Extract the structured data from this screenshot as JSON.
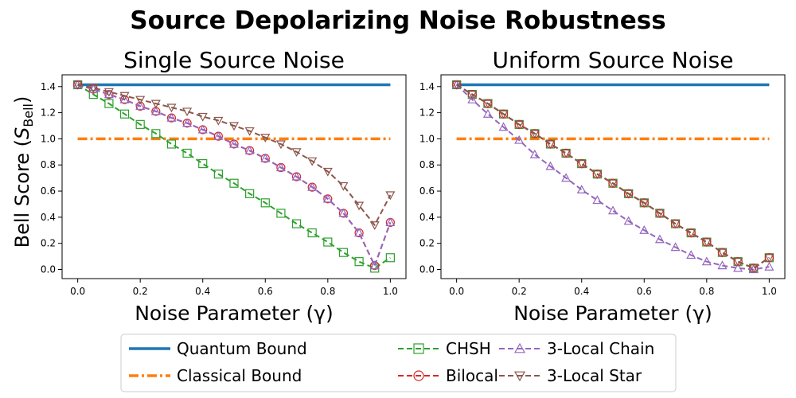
{
  "figure": {
    "title": "Source Depolarizing Noise Robustness"
  },
  "shared_ylabel": {
    "pre": "Bell Score (",
    "sym": "S",
    "sub": "Bell",
    "post": ")"
  },
  "legend": {
    "columns": 3,
    "entries": [
      {
        "label": "Quantum Bound",
        "color": "#1f77b4",
        "dash": "solid",
        "marker": "none"
      },
      {
        "label": "Classical Bound",
        "color": "#ff7f0e",
        "dash": "dashdot",
        "marker": "none"
      },
      {
        "label": "CHSH",
        "color": "#2ca02c",
        "dash": "dashed",
        "marker": "square"
      },
      {
        "label": "Bilocal",
        "color": "#d62728",
        "dash": "dashed",
        "marker": "circle"
      },
      {
        "label": "3-Local Chain",
        "color": "#9467bd",
        "dash": "dashed",
        "marker": "triangle-up"
      },
      {
        "label": "3-Local Star",
        "color": "#8c564b",
        "dash": "dashed",
        "marker": "triangle-down"
      }
    ]
  },
  "chart_data": [
    {
      "type": "line",
      "title": "Single Source Noise",
      "xlabel": "Noise Parameter (γ)",
      "ylabel": "Bell Score (S_Bell)",
      "xlim": [
        -0.05,
        1.05
      ],
      "ylim": [
        -0.07,
        1.49
      ],
      "xticks": [
        "0.0",
        "0.2",
        "0.4",
        "0.6",
        "0.8",
        "1.0"
      ],
      "yticks": [
        "0.0",
        "0.2",
        "0.4",
        "0.6",
        "0.8",
        "1.0",
        "1.2",
        "1.4"
      ],
      "grid": false,
      "x": [
        0,
        0.05,
        0.1,
        0.15,
        0.2,
        0.25,
        0.3,
        0.35,
        0.4,
        0.45,
        0.5,
        0.55,
        0.6,
        0.65,
        0.7,
        0.75,
        0.8,
        0.85,
        0.9,
        0.95,
        1.0
      ],
      "series": [
        {
          "name": "Quantum Bound",
          "values": [
            1.414,
            1.414,
            1.414,
            1.414,
            1.414,
            1.414,
            1.414,
            1.414,
            1.414,
            1.414,
            1.414,
            1.414,
            1.414,
            1.414,
            1.414,
            1.414,
            1.414,
            1.414,
            1.414,
            1.414,
            1.414
          ]
        },
        {
          "name": "Classical Bound",
          "values": [
            1,
            1,
            1,
            1,
            1,
            1,
            1,
            1,
            1,
            1,
            1,
            1,
            1,
            1,
            1,
            1,
            1,
            1,
            1,
            1,
            1
          ]
        },
        {
          "name": "CHSH",
          "values": [
            1.414,
            1.34,
            1.27,
            1.19,
            1.11,
            1.04,
            0.96,
            0.89,
            0.81,
            0.73,
            0.66,
            0.58,
            0.51,
            0.43,
            0.35,
            0.28,
            0.21,
            0.13,
            0.06,
            0.01,
            0.09
          ]
        },
        {
          "name": "Bilocal",
          "values": [
            1.414,
            1.38,
            1.34,
            1.3,
            1.25,
            1.21,
            1.16,
            1.12,
            1.07,
            1.02,
            0.96,
            0.91,
            0.85,
            0.78,
            0.71,
            0.63,
            0.54,
            0.43,
            0.28,
            0.03,
            0.36
          ]
        },
        {
          "name": "3-Local Chain",
          "values": [
            1.414,
            1.38,
            1.34,
            1.3,
            1.25,
            1.21,
            1.16,
            1.12,
            1.07,
            1.02,
            0.96,
            0.91,
            0.85,
            0.78,
            0.71,
            0.63,
            0.54,
            0.43,
            0.28,
            0.03,
            0.36
          ]
        },
        {
          "name": "3-Local Star",
          "values": [
            1.414,
            1.39,
            1.36,
            1.33,
            1.3,
            1.27,
            1.24,
            1.21,
            1.17,
            1.14,
            1.1,
            1.06,
            1.01,
            0.96,
            0.9,
            0.83,
            0.75,
            0.64,
            0.49,
            0.34,
            0.57
          ]
        }
      ]
    },
    {
      "type": "line",
      "title": "Uniform Source Noise",
      "xlabel": "Noise Parameter (γ)",
      "ylabel": "",
      "xlim": [
        -0.05,
        1.05
      ],
      "ylim": [
        -0.07,
        1.49
      ],
      "xticks": [
        "0.0",
        "0.2",
        "0.4",
        "0.6",
        "0.8",
        "1.0"
      ],
      "yticks": [
        "0.0",
        "0.2",
        "0.4",
        "0.6",
        "0.8",
        "1.0",
        "1.2",
        "1.4"
      ],
      "grid": false,
      "x": [
        0,
        0.05,
        0.1,
        0.15,
        0.2,
        0.25,
        0.3,
        0.35,
        0.4,
        0.45,
        0.5,
        0.55,
        0.6,
        0.65,
        0.7,
        0.75,
        0.8,
        0.85,
        0.9,
        0.95,
        1.0
      ],
      "series": [
        {
          "name": "Quantum Bound",
          "values": [
            1.414,
            1.414,
            1.414,
            1.414,
            1.414,
            1.414,
            1.414,
            1.414,
            1.414,
            1.414,
            1.414,
            1.414,
            1.414,
            1.414,
            1.414,
            1.414,
            1.414,
            1.414,
            1.414,
            1.414,
            1.414
          ]
        },
        {
          "name": "Classical Bound",
          "values": [
            1,
            1,
            1,
            1,
            1,
            1,
            1,
            1,
            1,
            1,
            1,
            1,
            1,
            1,
            1,
            1,
            1,
            1,
            1,
            1,
            1
          ]
        },
        {
          "name": "CHSH",
          "values": [
            1.414,
            1.34,
            1.27,
            1.19,
            1.11,
            1.04,
            0.96,
            0.89,
            0.81,
            0.73,
            0.66,
            0.58,
            0.51,
            0.43,
            0.35,
            0.28,
            0.21,
            0.13,
            0.06,
            0.01,
            0.09
          ]
        },
        {
          "name": "Bilocal",
          "values": [
            1.414,
            1.34,
            1.27,
            1.19,
            1.11,
            1.04,
            0.96,
            0.89,
            0.81,
            0.73,
            0.66,
            0.58,
            0.51,
            0.43,
            0.35,
            0.28,
            0.21,
            0.13,
            0.06,
            0.01,
            0.09
          ]
        },
        {
          "name": "3-Local Chain",
          "values": [
            1.414,
            1.3,
            1.19,
            1.09,
            0.99,
            0.88,
            0.79,
            0.7,
            0.61,
            0.53,
            0.45,
            0.37,
            0.3,
            0.23,
            0.17,
            0.11,
            0.06,
            0.03,
            0.01,
            0.0,
            0.02
          ]
        },
        {
          "name": "3-Local Star",
          "values": [
            1.414,
            1.34,
            1.27,
            1.19,
            1.11,
            1.04,
            0.96,
            0.89,
            0.81,
            0.73,
            0.66,
            0.58,
            0.51,
            0.43,
            0.35,
            0.28,
            0.21,
            0.13,
            0.06,
            0.01,
            0.09
          ]
        }
      ]
    }
  ]
}
